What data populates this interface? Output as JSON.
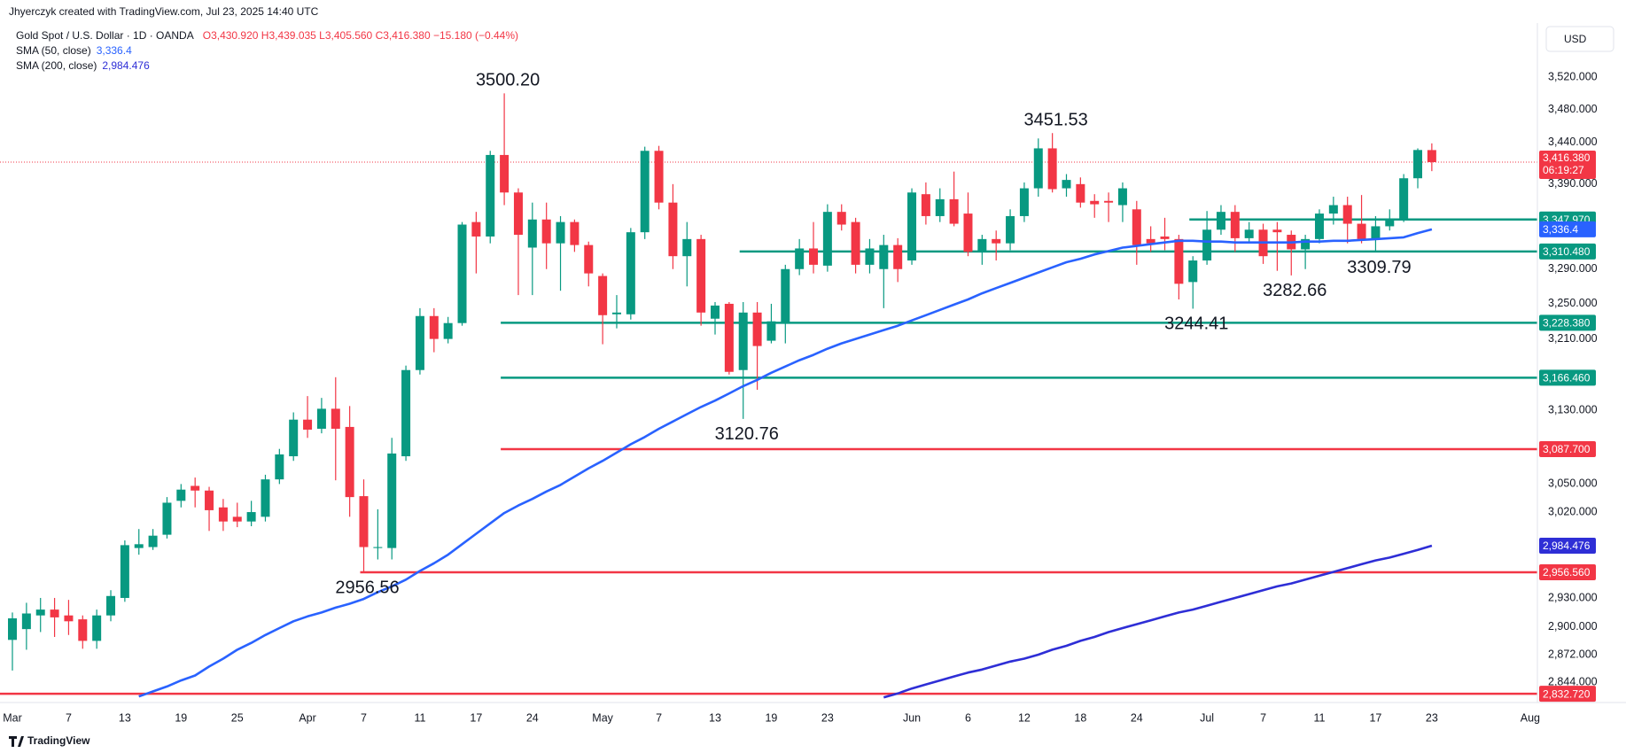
{
  "header": {
    "author_line": "Jhyerczyk created with TradingView.com, Jul 23, 2025 14:40 UTC",
    "symbol": "Gold Spot / U.S. Dollar · 1D · OANDA",
    "ohlc": "O3,430.920 H3,439.035 L3,405.560 C3,416.380 −15.180 (−0.44%)"
  },
  "footer": "TradingView",
  "chart_data": {
    "type": "candlestick",
    "currency": "USD",
    "log_scale": true,
    "up_color": "#089981",
    "down_color": "#f23645",
    "ylim": [
      2824,
      3588
    ],
    "yticks": [
      {
        "value": 3520,
        "label": "3,520.000"
      },
      {
        "value": 3480,
        "label": "3,480.000"
      },
      {
        "value": 3440,
        "label": "3,440.000"
      },
      {
        "value": 3390,
        "label": "3,390.000"
      },
      {
        "value": 3290,
        "label": "3,290.000"
      },
      {
        "value": 3250,
        "label": "3,250.000"
      },
      {
        "value": 3210,
        "label": "3,210.000"
      },
      {
        "value": 3130,
        "label": "3,130.000"
      },
      {
        "value": 3050,
        "label": "3,050.000"
      },
      {
        "value": 3020,
        "label": "3,020.000"
      },
      {
        "value": 2930,
        "label": "2,930.000"
      },
      {
        "value": 2900,
        "label": "2,900.000"
      },
      {
        "value": 2872,
        "label": "2,872.000"
      },
      {
        "value": 2844,
        "label": "2,844.000"
      }
    ],
    "categories": [
      "Mar",
      null,
      null,
      null,
      "7",
      null,
      null,
      null,
      "13",
      null,
      null,
      null,
      "19",
      null,
      null,
      null,
      "25",
      null,
      null,
      null,
      null,
      "Apr",
      null,
      null,
      null,
      "7",
      null,
      null,
      null,
      "11",
      null,
      null,
      null,
      "17",
      null,
      null,
      null,
      "24",
      null,
      null,
      null,
      null,
      "May",
      null,
      null,
      null,
      "7",
      null,
      null,
      null,
      "13",
      null,
      null,
      null,
      "19",
      null,
      null,
      null,
      "23",
      null,
      null,
      null,
      null,
      null,
      "Jun",
      null,
      null,
      null,
      "6",
      null,
      null,
      null,
      "12",
      null,
      null,
      null,
      "18",
      null,
      null,
      null,
      "24",
      null,
      null,
      null,
      null,
      "Jul",
      null,
      null,
      null,
      "7",
      null,
      null,
      null,
      "11",
      null,
      null,
      null,
      "17",
      null,
      null,
      null,
      "23",
      null,
      null,
      null,
      null,
      null,
      null,
      "Aug"
    ],
    "open": [
      2887,
      2898,
      2912,
      2918,
      2912,
      2908,
      2886,
      2912,
      2930,
      2982,
      2983,
      2996,
      3032,
      3048,
      3043,
      3025,
      3015,
      3010,
      3015,
      3055,
      3080,
      3120,
      3110,
      3132,
      3112,
      3037,
      2982,
      2982,
      3080,
      3175,
      3236,
      3210,
      3228,
      3345,
      3328,
      3425,
      3380,
      3315,
      3348,
      3320,
      3345,
      3318,
      3282,
      3238,
      3238,
      3333,
      3430,
      3368,
      3305,
      3325,
      3233,
      3250,
      3175,
      3240,
      3208,
      3228,
      3290,
      3314,
      3294,
      3357,
      3345,
      3295,
      3290,
      3318,
      3300,
      3378,
      3352,
      3372,
      3355,
      3310,
      3325,
      3320,
      3352,
      3385,
      3433,
      3385,
      3390,
      3370,
      3370,
      3365,
      3360,
      3325,
      3328,
      3325,
      3275,
      3300,
      3336,
      3357,
      3326,
      3336,
      3336,
      3330,
      3313,
      3325,
      3355,
      3365,
      3343,
      3325,
      3340,
      3349,
      3397,
      3430.92,
      null,
      null,
      null,
      null,
      null,
      null,
      null
    ],
    "high": [
      2915,
      2925,
      2930,
      2930,
      2928,
      2912,
      2918,
      2938,
      2990,
      3002,
      3002,
      3036,
      3050,
      3057,
      3047,
      3034,
      3030,
      3032,
      3060,
      3088,
      3128,
      3146,
      3144,
      3167,
      3135,
      3055,
      3023,
      3100,
      3180,
      3245,
      3245,
      3235,
      3345,
      3357,
      3430,
      3500.2,
      3385,
      3368,
      3368,
      3352,
      3348,
      3322,
      3285,
      3260,
      3338,
      3435,
      3436,
      3390,
      3345,
      3330,
      3252,
      3252,
      3252,
      3252,
      3250,
      3295,
      3325,
      3345,
      3366,
      3366,
      3350,
      3325,
      3330,
      3326,
      3385,
      3392,
      3385,
      3405,
      3380,
      3330,
      3335,
      3360,
      3392,
      3445,
      3451.53,
      3402,
      3398,
      3378,
      3380,
      3392,
      3370,
      3340,
      3350,
      3330,
      3305,
      3358,
      3365,
      3365,
      3345,
      3343,
      3345,
      3335,
      3330,
      3360,
      3375,
      3375,
      3377,
      3352,
      3360,
      3402,
      3433,
      3439.035,
      null,
      null,
      null,
      null,
      null,
      null,
      null
    ],
    "low": [
      2856,
      2877,
      2895,
      2890,
      2892,
      2878,
      2878,
      2906,
      2926,
      2975,
      2980,
      2992,
      3025,
      3025,
      3000,
      3000,
      3004,
      3005,
      3010,
      3050,
      3075,
      3100,
      3105,
      3054,
      3015,
      2956.56,
      2970,
      2970,
      3075,
      3170,
      3195,
      3205,
      3225,
      3285,
      3320,
      3365,
      3260,
      3260,
      3290,
      3265,
      3310,
      3270,
      3204,
      3222,
      3232,
      3325,
      3360,
      3290,
      3270,
      3225,
      3215,
      3170,
      3120.76,
      3153,
      3205,
      3205,
      3283,
      3285,
      3287,
      3335,
      3285,
      3285,
      3245,
      3275,
      3295,
      3342,
      3345,
      3340,
      3305,
      3295,
      3300,
      3312,
      3345,
      3375,
      3380,
      3375,
      3362,
      3350,
      3345,
      3345,
      3295,
      3310,
      3312,
      3255,
      3244.41,
      3295,
      3330,
      3310,
      3320,
      3296,
      3288,
      3282.66,
      3290,
      3320,
      3342,
      3320,
      3320,
      3309.79,
      3335,
      3345,
      3385,
      3405.56,
      null,
      null,
      null,
      null,
      null,
      null,
      null
    ],
    "close": [
      2909,
      2914,
      2918,
      2910,
      2906,
      2886,
      2912,
      2932,
      2985,
      2986,
      2995,
      3030,
      3044,
      3043,
      3022,
      3010,
      3010,
      3020,
      3055,
      3082,
      3120,
      3109,
      3132,
      3110,
      3036,
      2983,
      2983,
      3083,
      3175,
      3236,
      3210,
      3228,
      3342,
      3328,
      3425,
      3380,
      3330,
      3348,
      3320,
      3345,
      3318,
      3285,
      3237,
      3240,
      3333,
      3430,
      3368,
      3305,
      3325,
      3240,
      3248,
      3173,
      3240,
      3202,
      3230,
      3290,
      3314,
      3295,
      3357,
      3342,
      3295,
      3314,
      3318,
      3290,
      3380,
      3352,
      3372,
      3343,
      3310,
      3325,
      3320,
      3352,
      3385,
      3433,
      3384,
      3395,
      3368,
      3366,
      3368,
      3385,
      3318,
      3320,
      3325,
      3273,
      3300,
      3336,
      3357,
      3326,
      3336,
      3305,
      3333,
      3313,
      3325,
      3355,
      3365,
      3343,
      3325,
      3340,
      3349,
      3397,
      3431,
      3416.38,
      null,
      null,
      null,
      null,
      null,
      null,
      null
    ],
    "series": [
      {
        "name": "SMA (50, close)",
        "color": "#2962ff",
        "last_label": "3,336.4",
        "values": [
          null,
          null,
          null,
          null,
          null,
          null,
          null,
          null,
          null,
          2830,
          2835,
          2840,
          2846,
          2851,
          2860,
          2868,
          2877,
          2884,
          2892,
          2899,
          2906,
          2911,
          2915,
          2920,
          2924,
          2929,
          2936,
          2942,
          2949,
          2958,
          2966,
          2975,
          2986,
          2997,
          3008,
          3019,
          3027,
          3034,
          3042,
          3049,
          3058,
          3067,
          3075,
          3084,
          3093,
          3101,
          3110,
          3118,
          3126,
          3134,
          3141,
          3149,
          3157,
          3164,
          3172,
          3179,
          3186,
          3192,
          3199,
          3205,
          3210,
          3215,
          3220,
          3225,
          3231,
          3237,
          3243,
          3249,
          3255,
          3262,
          3268,
          3274,
          3280,
          3286,
          3292,
          3298,
          3302,
          3307,
          3311,
          3315,
          3317,
          3319,
          3321,
          3323,
          3323,
          3322,
          3322,
          3321,
          3321,
          3321,
          3321,
          3321,
          3322,
          3322,
          3323,
          3323,
          3324,
          3325,
          3326,
          3327,
          3332,
          3336.4,
          null,
          null,
          null,
          null,
          null,
          null,
          null
        ]
      },
      {
        "name": "SMA (200, close)",
        "color": "#2e2ed6",
        "last_label": "2,984.476",
        "values": [
          null,
          null,
          null,
          null,
          null,
          null,
          null,
          null,
          null,
          null,
          null,
          null,
          null,
          null,
          null,
          null,
          null,
          null,
          null,
          null,
          null,
          null,
          null,
          null,
          null,
          null,
          null,
          null,
          null,
          null,
          null,
          null,
          null,
          null,
          null,
          null,
          null,
          null,
          null,
          null,
          null,
          null,
          null,
          null,
          null,
          null,
          null,
          null,
          null,
          null,
          null,
          null,
          null,
          null,
          null,
          null,
          null,
          null,
          null,
          null,
          null,
          null,
          2829,
          2833,
          2838,
          2842,
          2846,
          2850,
          2854,
          2857,
          2861,
          2865,
          2868,
          2872,
          2877,
          2881,
          2886,
          2890,
          2895,
          2899,
          2903,
          2907,
          2911,
          2915,
          2918,
          2922,
          2926,
          2930,
          2934,
          2938,
          2942,
          2945,
          2949,
          2953,
          2957,
          2961,
          2965,
          2969,
          2972,
          2976,
          2980,
          2984.476,
          null,
          null,
          null,
          null,
          null,
          null,
          null
        ]
      }
    ],
    "levels": [
      {
        "value": 3347.97,
        "label": "3,347.970",
        "color": "#089981"
      },
      {
        "value": 3310.48,
        "label": "3,310.480",
        "color": "#089981"
      },
      {
        "value": 3228.38,
        "label": "3,228.380",
        "color": "#089981"
      },
      {
        "value": 3166.46,
        "label": "3,166.460",
        "color": "#089981"
      },
      {
        "value": 3087.7,
        "label": "3,087.700",
        "color": "#f23645"
      },
      {
        "value": 2956.56,
        "label": "2,956.560",
        "color": "#f23645"
      },
      {
        "value": 2832.72,
        "label": "2,832.720",
        "color": "#f23645"
      }
    ],
    "last_price": {
      "value": 3416.38,
      "label": "3,416.380",
      "countdown": "06:19:27",
      "color": "#f23645"
    },
    "annotations": [
      {
        "text": "3500.20",
        "value": 3500.2
      },
      {
        "text": "3451.53",
        "value": 3451.53
      },
      {
        "text": "3120.76",
        "value": 3120.76
      },
      {
        "text": "2956.56",
        "value": 2956.56
      },
      {
        "text": "3244.41",
        "value": 3244.41
      },
      {
        "text": "3282.66",
        "value": 3282.66
      },
      {
        "text": "3309.79",
        "value": 3309.79
      }
    ]
  }
}
